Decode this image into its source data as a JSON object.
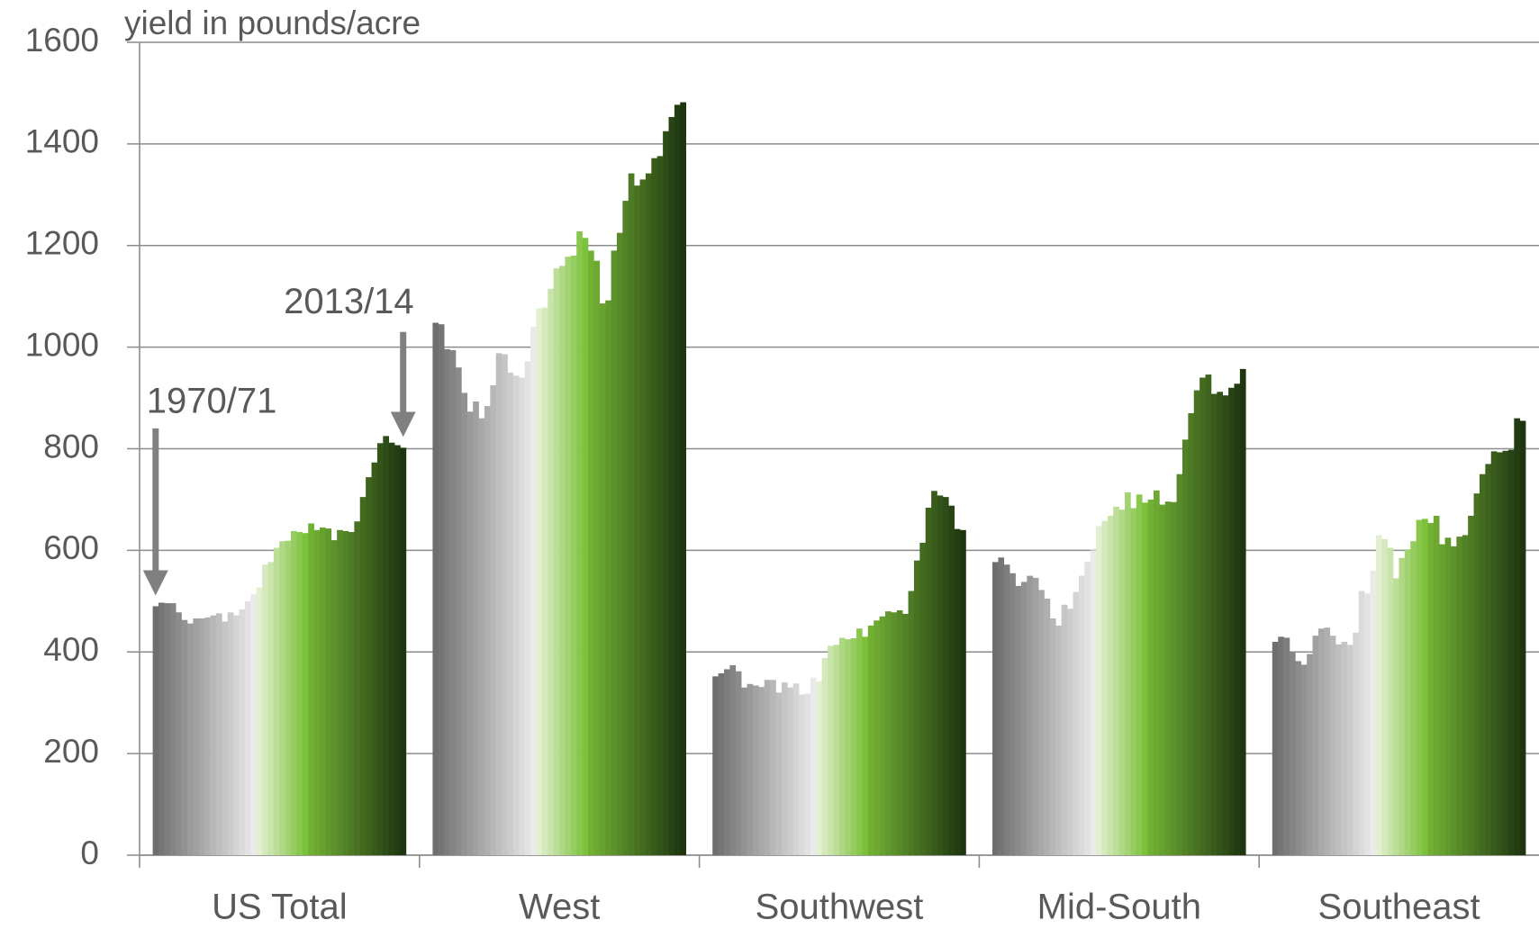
{
  "chart_data": {
    "type": "bar",
    "y_label": "yield in pounds/acre",
    "annotations": [
      "1970/71",
      "2013/14"
    ],
    "categories": [
      "US Total",
      "West",
      "Southwest",
      "Mid-South",
      "Southeast"
    ],
    "ylim": [
      0,
      1600
    ],
    "yticks": [
      0,
      200,
      400,
      600,
      800,
      1000,
      1200,
      1400,
      1600
    ],
    "grid": true,
    "series": [
      {
        "color": "#6e6e6e",
        "values": [
          490,
          1048,
          352,
          577,
          420
        ]
      },
      {
        "color": "#757575",
        "values": [
          497,
          1045,
          358,
          586,
          430
        ]
      },
      {
        "color": "#7d7d7d",
        "values": [
          496,
          996,
          366,
          572,
          428
        ]
      },
      {
        "color": "#848484",
        "values": [
          496,
          994,
          374,
          555,
          400
        ]
      },
      {
        "color": "#8b8b8b",
        "values": [
          478,
          960,
          362,
          530,
          382
        ]
      },
      {
        "color": "#929292",
        "values": [
          463,
          910,
          330,
          538,
          375
        ]
      },
      {
        "color": "#9a9a9a",
        "values": [
          456,
          873,
          337,
          550,
          396
        ]
      },
      {
        "color": "#a1a1a1",
        "values": [
          466,
          893,
          334,
          546,
          432
        ]
      },
      {
        "color": "#a8a8a8",
        "values": [
          466,
          860,
          331,
          522,
          446
        ]
      },
      {
        "color": "#afafaf",
        "values": [
          468,
          884,
          345,
          505,
          448
        ]
      },
      {
        "color": "#b7b7b7",
        "values": [
          472,
          925,
          345,
          466,
          432
        ]
      },
      {
        "color": "#bebebe",
        "values": [
          476,
          988,
          320,
          452,
          415
        ]
      },
      {
        "color": "#c5c5c5",
        "values": [
          460,
          986,
          340,
          493,
          420
        ]
      },
      {
        "color": "#cccccc",
        "values": [
          478,
          950,
          330,
          485,
          414
        ]
      },
      {
        "color": "#d4d4d4",
        "values": [
          472,
          944,
          338,
          518,
          438
        ]
      },
      {
        "color": "#dbdbdb",
        "values": [
          484,
          940,
          316,
          550,
          520
        ]
      },
      {
        "color": "#e2e2e2",
        "values": [
          500,
          972,
          318,
          578,
          515
        ]
      },
      {
        "color": "#eaeaea",
        "values": [
          514,
          1040,
          350,
          600,
          560
        ]
      },
      {
        "color": "#e2efd0",
        "values": [
          527,
          1076,
          342,
          648,
          630
        ]
      },
      {
        "color": "#d5e9bd",
        "values": [
          572,
          1078,
          388,
          658,
          622
        ]
      },
      {
        "color": "#c8e4ab",
        "values": [
          577,
          1115,
          412,
          668,
          605
        ]
      },
      {
        "color": "#bcde98",
        "values": [
          605,
          1155,
          414,
          686,
          545
        ]
      },
      {
        "color": "#afd885",
        "values": [
          618,
          1160,
          428,
          680,
          585
        ]
      },
      {
        "color": "#a2d272",
        "values": [
          619,
          1178,
          425,
          714,
          602
        ]
      },
      {
        "color": "#96cd60",
        "values": [
          638,
          1180,
          427,
          683,
          618
        ]
      },
      {
        "color": "#89c74d",
        "values": [
          636,
          1228,
          446,
          710,
          660
        ]
      },
      {
        "color": "#7cc13a",
        "values": [
          634,
          1215,
          430,
          694,
          662
        ]
      },
      {
        "color": "#72b034",
        "values": [
          653,
          1190,
          452,
          700,
          654
        ]
      },
      {
        "color": "#6da832",
        "values": [
          640,
          1170,
          462,
          718,
          668
        ]
      },
      {
        "color": "#67a12f",
        "values": [
          645,
          1086,
          470,
          690,
          612
        ]
      },
      {
        "color": "#62992d",
        "values": [
          643,
          1092,
          480,
          696,
          625
        ]
      },
      {
        "color": "#5d912b",
        "values": [
          620,
          1190,
          478,
          695,
          608
        ]
      },
      {
        "color": "#588a29",
        "values": [
          640,
          1225,
          482,
          750,
          627
        ]
      },
      {
        "color": "#528226",
        "values": [
          638,
          1288,
          475,
          818,
          630
        ]
      },
      {
        "color": "#4d7a24",
        "values": [
          636,
          1342,
          520,
          870,
          668
        ]
      },
      {
        "color": "#487222",
        "values": [
          657,
          1318,
          580,
          915,
          712
        ]
      },
      {
        "color": "#436b20",
        "values": [
          705,
          1330,
          615,
          940,
          750
        ]
      },
      {
        "color": "#3d631d",
        "values": [
          744,
          1342,
          684,
          946,
          770
        ]
      },
      {
        "color": "#385b1b",
        "values": [
          773,
          1372,
          717,
          908,
          795
        ]
      },
      {
        "color": "#335419",
        "values": [
          811,
          1376,
          708,
          912,
          793
        ]
      },
      {
        "color": "#2e4c17",
        "values": [
          825,
          1425,
          705,
          905,
          796
        ]
      },
      {
        "color": "#284414",
        "values": [
          812,
          1453,
          688,
          920,
          798
        ]
      },
      {
        "color": "#233d12",
        "values": [
          807,
          1477,
          642,
          928,
          860
        ]
      },
      {
        "color": "#1e3510",
        "values": [
          802,
          1482,
          640,
          957,
          855
        ]
      }
    ]
  }
}
